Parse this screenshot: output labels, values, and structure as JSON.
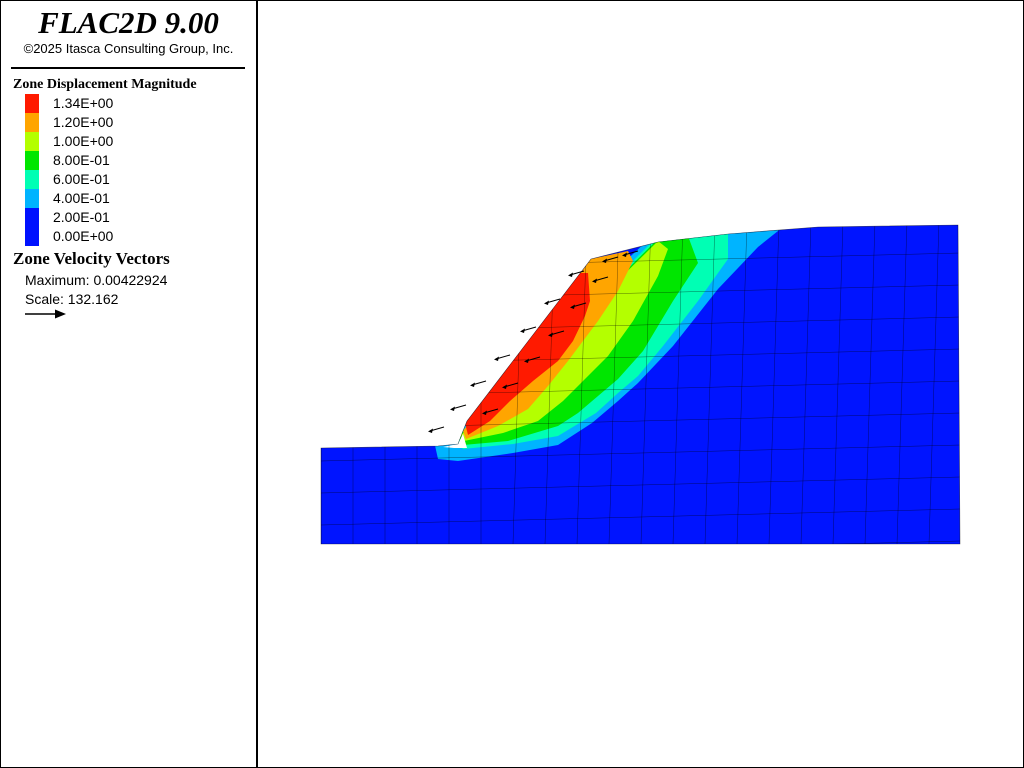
{
  "app": {
    "title": "FLAC2D 9.00",
    "copyright": "©2025 Itasca Consulting Group, Inc."
  },
  "legend": {
    "contour_title": "Zone Displacement Magnitude",
    "contour_levels": [
      {
        "label": "1.34E+00",
        "color": "#ff1a00"
      },
      {
        "label": "1.20E+00",
        "color": "#ffa500"
      },
      {
        "label": "1.00E+00",
        "color": "#b4ff00"
      },
      {
        "label": "8.00E-01",
        "color": "#00e600"
      },
      {
        "label": "6.00E-01",
        "color": "#00ffb4"
      },
      {
        "label": "4.00E-01",
        "color": "#00b4ff"
      },
      {
        "label": "2.00E-01",
        "color": "#0011ff"
      },
      {
        "label": "0.00E+00",
        "color": "#0011ff"
      }
    ],
    "vector_title": "Zone Velocity Vectors",
    "vector_maximum": "Maximum: 0.00422924",
    "vector_scale": "Scale: 132.162",
    "vector_icon": "arrow-right-icon"
  },
  "model": {
    "colors": {
      "base": "#0014ff",
      "band_200": "#00b4ff",
      "band_400": "#00ffb4",
      "band_600": "#00e600",
      "band_800": "#b4ff00",
      "band_1000": "#ffa500",
      "band_1200": "#ff1a00",
      "grid": "#000000"
    }
  }
}
